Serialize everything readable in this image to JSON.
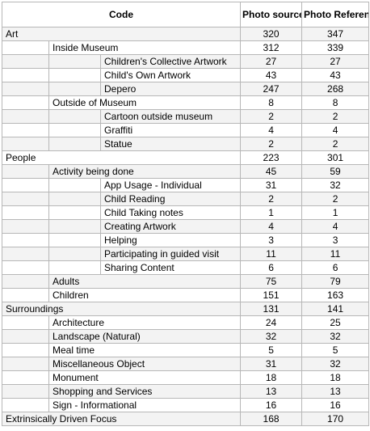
{
  "header": {
    "code": "Code",
    "photo_sources": "Photo sources",
    "photo_references": "Photo References"
  },
  "rows": [
    {
      "level": 0,
      "label": "Art",
      "sources": "320",
      "references": "347"
    },
    {
      "level": 1,
      "label": "Inside Museum",
      "sources": "312",
      "references": "339"
    },
    {
      "level": 2,
      "label": "Children's Collective Artwork",
      "sources": "27",
      "references": "27"
    },
    {
      "level": 2,
      "label": "Child's Own Artwork",
      "sources": "43",
      "references": "43"
    },
    {
      "level": 2,
      "label": "Depero",
      "sources": "247",
      "references": "268"
    },
    {
      "level": 1,
      "label": "Outside of Museum",
      "sources": "8",
      "references": "8"
    },
    {
      "level": 2,
      "label": "Cartoon outside museum",
      "sources": "2",
      "references": "2"
    },
    {
      "level": 2,
      "label": "Graffiti",
      "sources": "4",
      "references": "4"
    },
    {
      "level": 2,
      "label": "Statue",
      "sources": "2",
      "references": "2"
    },
    {
      "level": 0,
      "label": "People",
      "sources": "223",
      "references": "301"
    },
    {
      "level": 1,
      "label": "Activity being done",
      "sources": "45",
      "references": "59"
    },
    {
      "level": 2,
      "label": "App Usage - Individual",
      "sources": "31",
      "references": "32"
    },
    {
      "level": 2,
      "label": "Child Reading",
      "sources": "2",
      "references": "2"
    },
    {
      "level": 2,
      "label": "Child Taking notes",
      "sources": "1",
      "references": "1"
    },
    {
      "level": 2,
      "label": "Creating  Artwork",
      "sources": "4",
      "references": "4"
    },
    {
      "level": 2,
      "label": "Helping",
      "sources": "3",
      "references": "3"
    },
    {
      "level": 2,
      "label": "Participating in guided visit",
      "sources": "11",
      "references": "11"
    },
    {
      "level": 2,
      "label": "Sharing Content",
      "sources": "6",
      "references": "6"
    },
    {
      "level": 1,
      "label": "Adults",
      "sources": "75",
      "references": "79"
    },
    {
      "level": 1,
      "label": "Children",
      "sources": "151",
      "references": "163"
    },
    {
      "level": 0,
      "label": "Surroundings",
      "sources": "131",
      "references": "141"
    },
    {
      "level": 1,
      "label": "Architecture",
      "sources": "24",
      "references": "25"
    },
    {
      "level": 1,
      "label": "Landscape (Natural)",
      "sources": "32",
      "references": "32"
    },
    {
      "level": 1,
      "label": "Meal time",
      "sources": "5",
      "references": "5"
    },
    {
      "level": 1,
      "label": "Miscellaneous Object",
      "sources": "31",
      "references": "32"
    },
    {
      "level": 1,
      "label": "Monument",
      "sources": "18",
      "references": "18"
    },
    {
      "level": 1,
      "label": "Shopping and Services",
      "sources": "13",
      "references": "13"
    },
    {
      "level": 1,
      "label": "Sign - Informational",
      "sources": "16",
      "references": "16"
    },
    {
      "level": 0,
      "label": "Extrinsically Driven Focus",
      "sources": "168",
      "references": "170"
    }
  ]
}
